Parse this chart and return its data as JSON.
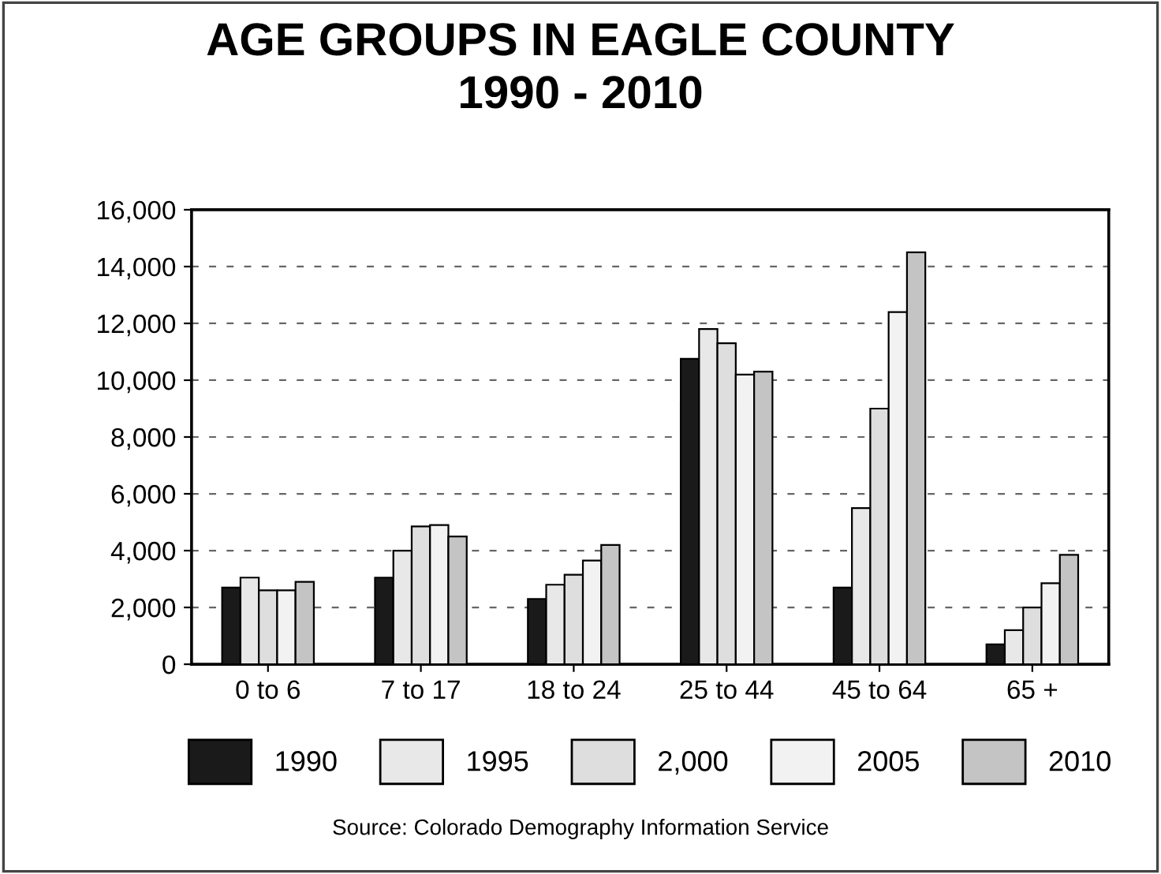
{
  "chart_data": {
    "type": "bar",
    "title": "AGE GROUPS IN EAGLE COUNTY\n1990 - 2010",
    "categories": [
      "0 to 6",
      "7 to 17",
      "18 to 24",
      "25 to 44",
      "45 to 64",
      "65 +"
    ],
    "series": [
      {
        "name": "1990",
        "color": "#1a1a1a",
        "values": [
          2700,
          3050,
          2300,
          10750,
          2700,
          700
        ]
      },
      {
        "name": "1995",
        "color": "#e8e8e8",
        "values": [
          3050,
          4000,
          2800,
          11800,
          5500,
          1200
        ]
      },
      {
        "name": "2,000",
        "color": "#dedede",
        "values": [
          2600,
          4850,
          3150,
          11300,
          9000,
          2000
        ]
      },
      {
        "name": "2005",
        "color": "#f2f2f2",
        "values": [
          2600,
          4900,
          3650,
          10200,
          12400,
          2850
        ]
      },
      {
        "name": "2010",
        "color": "#c4c4c4",
        "values": [
          2900,
          4500,
          4200,
          10300,
          14500,
          3850
        ]
      }
    ],
    "ylim": [
      0,
      16000
    ],
    "yticks": [
      {
        "value": 0,
        "label": "0"
      },
      {
        "value": 2000,
        "label": "2,000"
      },
      {
        "value": 4000,
        "label": "4,000"
      },
      {
        "value": 6000,
        "label": "6,000"
      },
      {
        "value": 8000,
        "label": "8,000"
      },
      {
        "value": 10000,
        "label": "10,000"
      },
      {
        "value": 12000,
        "label": "12,000"
      },
      {
        "value": 14000,
        "label": "14,000"
      },
      {
        "value": 16000,
        "label": "16,000"
      }
    ],
    "grid": "y",
    "legend": "bottom",
    "annotations": [
      "Source: Colorado Demography Information Service"
    ]
  }
}
